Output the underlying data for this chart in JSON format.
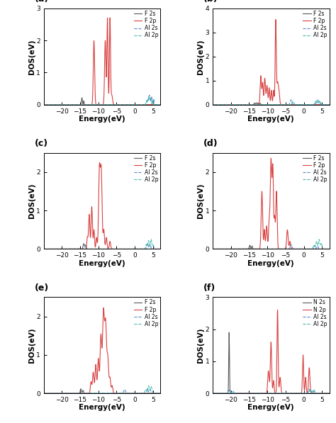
{
  "panels": [
    {
      "label": "a",
      "ylim": [
        0,
        3
      ],
      "yticks": [
        0,
        1,
        2,
        3
      ],
      "species": "F"
    },
    {
      "label": "b",
      "ylim": [
        0,
        4
      ],
      "yticks": [
        0,
        1,
        2,
        3,
        4
      ],
      "species": "F"
    },
    {
      "label": "c",
      "ylim": [
        0,
        2.5
      ],
      "yticks": [
        0,
        1,
        2
      ],
      "species": "F"
    },
    {
      "label": "d",
      "ylim": [
        0,
        2.5
      ],
      "yticks": [
        0,
        1,
        2
      ],
      "species": "F"
    },
    {
      "label": "e",
      "ylim": [
        0,
        2.5
      ],
      "yticks": [
        0,
        1,
        2
      ],
      "species": "F"
    },
    {
      "label": "f",
      "ylim": [
        0,
        3
      ],
      "yticks": [
        0,
        1,
        2,
        3
      ],
      "species": "N"
    }
  ],
  "xlim": [
    -25,
    7
  ],
  "xticks": [
    -20,
    -15,
    -10,
    -5,
    0,
    5
  ],
  "colors": {
    "s": "#5a5a5a",
    "p": "#d94040",
    "Al_s": "#5588cc",
    "Al_p": "#44bbaa"
  },
  "xlabel": "Energy(eV)",
  "ylabel": "DOS(eV)",
  "background": "#ffffff"
}
